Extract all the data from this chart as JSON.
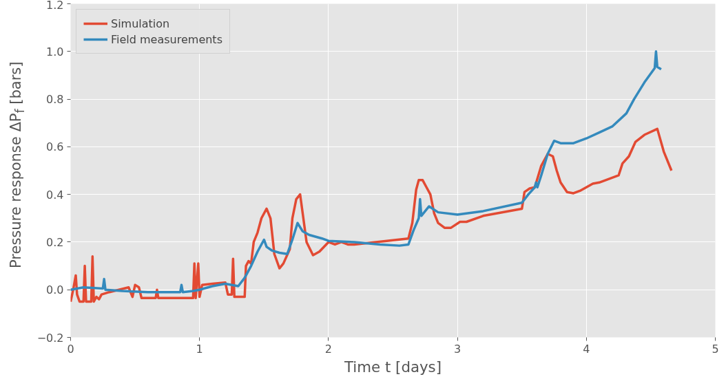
{
  "chart_data": {
    "type": "line",
    "xlabel": "Time t [days]",
    "ylabel": "Pressure response ΔP$_{f}$ [bars]",
    "xlim": [
      0,
      5
    ],
    "ylim": [
      -0.2,
      1.2
    ],
    "xticks": [
      0,
      1,
      2,
      3,
      4,
      5
    ],
    "yticks": [
      {
        "value": -0.2,
        "label": "−0.2"
      },
      {
        "value": 0,
        "label": "0.0"
      },
      {
        "value": 0.2,
        "label": "0.2"
      },
      {
        "value": 0.4,
        "label": "0.4"
      },
      {
        "value": 0.6,
        "label": "0.6"
      },
      {
        "value": 0.8,
        "label": "0.8"
      },
      {
        "value": 1.0,
        "label": "1.0"
      },
      {
        "value": 1.2,
        "label": "1.2"
      }
    ],
    "grid": true,
    "legend": "top left",
    "line_style": "solid",
    "marker": "none",
    "series": [
      {
        "name": "Simulation",
        "color": "#e24a33",
        "x": [
          0.0,
          0.02,
          0.04,
          0.05,
          0.07,
          0.1,
          0.11,
          0.12,
          0.16,
          0.17,
          0.18,
          0.2,
          0.22,
          0.24,
          0.3,
          0.45,
          0.48,
          0.5,
          0.53,
          0.55,
          0.66,
          0.67,
          0.68,
          0.95,
          0.96,
          0.97,
          0.99,
          1.0,
          1.02,
          1.1,
          1.2,
          1.22,
          1.25,
          1.26,
          1.27,
          1.3,
          1.35,
          1.36,
          1.38,
          1.4,
          1.42,
          1.45,
          1.48,
          1.52,
          1.55,
          1.58,
          1.62,
          1.65,
          1.7,
          1.72,
          1.75,
          1.78,
          1.8,
          1.83,
          1.88,
          1.93,
          2.0,
          2.05,
          2.1,
          2.15,
          2.2,
          2.62,
          2.65,
          2.68,
          2.7,
          2.73,
          2.76,
          2.79,
          2.82,
          2.85,
          2.9,
          2.95,
          3.02,
          3.07,
          3.2,
          3.5,
          3.52,
          3.56,
          3.6,
          3.65,
          3.7,
          3.74,
          3.77,
          3.8,
          3.85,
          3.9,
          3.95,
          4.0,
          4.05,
          4.1,
          4.25,
          4.28,
          4.33,
          4.38,
          4.45,
          4.55,
          4.6,
          4.66
        ],
        "values": [
          -0.05,
          0.0,
          0.06,
          -0.02,
          -0.05,
          -0.05,
          0.1,
          -0.05,
          -0.05,
          0.14,
          -0.05,
          -0.03,
          -0.04,
          -0.02,
          -0.01,
          0.01,
          -0.03,
          0.02,
          0.01,
          -0.035,
          -0.035,
          0.0,
          -0.035,
          -0.035,
          0.11,
          -0.035,
          0.11,
          -0.03,
          0.02,
          0.025,
          0.03,
          -0.02,
          -0.02,
          0.13,
          -0.03,
          -0.03,
          -0.03,
          0.1,
          0.12,
          0.11,
          0.2,
          0.24,
          0.3,
          0.34,
          0.3,
          0.15,
          0.09,
          0.11,
          0.17,
          0.3,
          0.38,
          0.4,
          0.32,
          0.2,
          0.145,
          0.16,
          0.2,
          0.19,
          0.2,
          0.19,
          0.19,
          0.215,
          0.28,
          0.42,
          0.46,
          0.46,
          0.43,
          0.4,
          0.32,
          0.28,
          0.26,
          0.26,
          0.285,
          0.285,
          0.31,
          0.34,
          0.41,
          0.425,
          0.43,
          0.52,
          0.57,
          0.56,
          0.5,
          0.45,
          0.41,
          0.405,
          0.415,
          0.43,
          0.445,
          0.45,
          0.48,
          0.53,
          0.56,
          0.62,
          0.65,
          0.675,
          0.58,
          0.5
        ]
      },
      {
        "name": "Field measurements",
        "color": "#348abd",
        "x": [
          0.0,
          0.1,
          0.25,
          0.26,
          0.27,
          0.4,
          0.6,
          0.85,
          0.86,
          0.87,
          0.95,
          1.0,
          1.1,
          1.2,
          1.3,
          1.35,
          1.4,
          1.45,
          1.5,
          1.52,
          1.56,
          1.62,
          1.68,
          1.72,
          1.76,
          1.8,
          1.85,
          1.95,
          2.0,
          2.2,
          2.4,
          2.55,
          2.62,
          2.66,
          2.7,
          2.71,
          2.72,
          2.78,
          2.85,
          3.0,
          3.2,
          3.5,
          3.55,
          3.6,
          3.61,
          3.62,
          3.65,
          3.7,
          3.75,
          3.8,
          3.9,
          4.0,
          4.1,
          4.2,
          4.31,
          4.37,
          4.45,
          4.53,
          4.54,
          4.55,
          4.58
        ],
        "values": [
          0.0,
          0.01,
          0.005,
          0.045,
          0.0,
          -0.005,
          -0.01,
          -0.01,
          0.02,
          -0.01,
          -0.005,
          0.0,
          0.015,
          0.025,
          0.015,
          0.05,
          0.1,
          0.16,
          0.21,
          0.18,
          0.165,
          0.155,
          0.15,
          0.21,
          0.28,
          0.245,
          0.23,
          0.215,
          0.205,
          0.2,
          0.19,
          0.185,
          0.19,
          0.25,
          0.3,
          0.38,
          0.31,
          0.35,
          0.325,
          0.315,
          0.33,
          0.365,
          0.4,
          0.43,
          0.45,
          0.43,
          0.48,
          0.57,
          0.625,
          0.615,
          0.615,
          0.635,
          0.66,
          0.685,
          0.74,
          0.8,
          0.87,
          0.93,
          1.0,
          0.935,
          0.925
        ]
      }
    ]
  }
}
